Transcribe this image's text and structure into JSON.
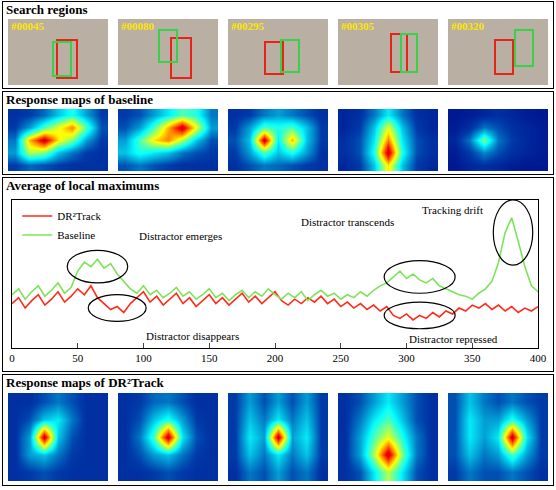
{
  "search_regions": {
    "title": "Search regions",
    "frames": [
      "#00045",
      "#00080",
      "#00295",
      "#00305",
      "#00320"
    ]
  },
  "baseline_maps": {
    "title": "Response maps of baseline",
    "zlim": [
      0,
      1
    ],
    "maps": [
      [
        [
          0.1,
          0.12,
          0.18,
          0.3,
          0.4,
          0.25,
          0.12
        ],
        [
          0.12,
          0.25,
          0.45,
          0.6,
          0.75,
          0.45,
          0.15
        ],
        [
          0.2,
          0.7,
          0.95,
          0.65,
          0.5,
          0.25,
          0.12
        ],
        [
          0.25,
          0.55,
          0.5,
          0.3,
          0.2,
          0.12,
          0.1
        ],
        [
          0.12,
          0.18,
          0.15,
          0.12,
          0.1,
          0.1,
          0.1
        ]
      ],
      [
        [
          0.12,
          0.15,
          0.25,
          0.35,
          0.45,
          0.4,
          0.2
        ],
        [
          0.15,
          0.25,
          0.45,
          0.7,
          0.95,
          0.6,
          0.25
        ],
        [
          0.25,
          0.45,
          0.65,
          0.75,
          0.55,
          0.3,
          0.15
        ],
        [
          0.3,
          0.4,
          0.35,
          0.3,
          0.2,
          0.15,
          0.12
        ],
        [
          0.15,
          0.2,
          0.15,
          0.12,
          0.1,
          0.1,
          0.1
        ]
      ],
      [
        [
          0.1,
          0.12,
          0.2,
          0.25,
          0.2,
          0.15,
          0.1
        ],
        [
          0.12,
          0.25,
          0.45,
          0.4,
          0.45,
          0.3,
          0.12
        ],
        [
          0.15,
          0.3,
          0.95,
          0.35,
          0.7,
          0.3,
          0.12
        ],
        [
          0.12,
          0.25,
          0.45,
          0.3,
          0.4,
          0.25,
          0.1
        ],
        [
          0.1,
          0.15,
          0.2,
          0.18,
          0.15,
          0.12,
          0.1
        ]
      ],
      [
        [
          0.08,
          0.1,
          0.2,
          0.35,
          0.2,
          0.1,
          0.08
        ],
        [
          0.08,
          0.12,
          0.3,
          0.6,
          0.3,
          0.12,
          0.08
        ],
        [
          0.1,
          0.15,
          0.35,
          0.75,
          0.35,
          0.15,
          0.1
        ],
        [
          0.1,
          0.15,
          0.4,
          0.95,
          0.4,
          0.15,
          0.1
        ],
        [
          0.08,
          0.12,
          0.3,
          0.65,
          0.3,
          0.12,
          0.08
        ]
      ],
      [
        [
          0.05,
          0.06,
          0.08,
          0.1,
          0.08,
          0.06,
          0.05
        ],
        [
          0.06,
          0.1,
          0.2,
          0.15,
          0.1,
          0.08,
          0.06
        ],
        [
          0.08,
          0.2,
          0.5,
          0.2,
          0.12,
          0.08,
          0.06
        ],
        [
          0.06,
          0.12,
          0.22,
          0.15,
          0.1,
          0.08,
          0.06
        ],
        [
          0.05,
          0.08,
          0.1,
          0.08,
          0.06,
          0.05,
          0.05
        ]
      ]
    ]
  },
  "chart_data": {
    "type": "line",
    "title": "Average of local maximums",
    "x": [
      0,
      5,
      10,
      15,
      20,
      25,
      30,
      35,
      40,
      45,
      50,
      55,
      60,
      65,
      70,
      75,
      80,
      85,
      90,
      95,
      100,
      105,
      110,
      115,
      120,
      125,
      130,
      135,
      140,
      145,
      150,
      155,
      160,
      165,
      170,
      175,
      180,
      185,
      190,
      195,
      200,
      205,
      210,
      215,
      220,
      225,
      230,
      235,
      240,
      245,
      250,
      255,
      260,
      265,
      270,
      275,
      280,
      285,
      290,
      295,
      300,
      305,
      310,
      315,
      320,
      325,
      330,
      335,
      340,
      345,
      350,
      355,
      360,
      365,
      370,
      375,
      380,
      385,
      390,
      395,
      400
    ],
    "series": [
      {
        "name": "DR²Track",
        "color": "#ff2a1a",
        "values": [
          0.3,
          0.34,
          0.27,
          0.32,
          0.36,
          0.29,
          0.33,
          0.38,
          0.31,
          0.35,
          0.4,
          0.36,
          0.42,
          0.34,
          0.3,
          0.26,
          0.28,
          0.24,
          0.3,
          0.34,
          0.38,
          0.31,
          0.35,
          0.29,
          0.33,
          0.37,
          0.3,
          0.34,
          0.28,
          0.32,
          0.36,
          0.3,
          0.34,
          0.29,
          0.33,
          0.37,
          0.31,
          0.35,
          0.3,
          0.34,
          0.38,
          0.32,
          0.29,
          0.33,
          0.3,
          0.34,
          0.31,
          0.35,
          0.3,
          0.33,
          0.28,
          0.31,
          0.27,
          0.3,
          0.26,
          0.29,
          0.25,
          0.28,
          0.22,
          0.2,
          0.23,
          0.19,
          0.22,
          0.2,
          0.24,
          0.21,
          0.25,
          0.23,
          0.27,
          0.25,
          0.29,
          0.27,
          0.3,
          0.26,
          0.29,
          0.25,
          0.28,
          0.24,
          0.27,
          0.25,
          0.28
        ]
      },
      {
        "name": "Baseline",
        "color": "#7ee35a",
        "values": [
          0.36,
          0.4,
          0.33,
          0.38,
          0.42,
          0.35,
          0.39,
          0.44,
          0.37,
          0.41,
          0.52,
          0.58,
          0.55,
          0.6,
          0.54,
          0.57,
          0.5,
          0.45,
          0.4,
          0.37,
          0.42,
          0.36,
          0.39,
          0.34,
          0.37,
          0.41,
          0.35,
          0.38,
          0.33,
          0.36,
          0.4,
          0.34,
          0.37,
          0.32,
          0.36,
          0.39,
          0.34,
          0.38,
          0.35,
          0.4,
          0.36,
          0.33,
          0.37,
          0.34,
          0.38,
          0.32,
          0.36,
          0.39,
          0.35,
          0.37,
          0.33,
          0.36,
          0.34,
          0.38,
          0.35,
          0.39,
          0.42,
          0.44,
          0.48,
          0.52,
          0.47,
          0.5,
          0.46,
          0.44,
          0.47,
          0.42,
          0.4,
          0.38,
          0.36,
          0.35,
          0.33,
          0.37,
          0.4,
          0.45,
          0.58,
          0.78,
          0.88,
          0.72,
          0.55,
          0.42,
          0.38
        ]
      }
    ],
    "xlim": [
      0,
      400
    ],
    "xticks": [
      0,
      50,
      100,
      150,
      200,
      250,
      300,
      350,
      400
    ],
    "ylim": [
      0,
      1
    ],
    "tick_labels": "x",
    "grid": false,
    "legend": "upper left",
    "annotations": [
      "Distractor emerges",
      "Distractor disappears",
      "Distractor transcends",
      "Distractor repressed",
      "Tracking drift"
    ]
  },
  "dr2track_maps": {
    "title": "Response maps of DR²Track",
    "zlim": [
      0,
      1
    ],
    "maps": [
      [
        [
          0.1,
          0.1,
          0.15,
          0.2,
          0.15,
          0.1,
          0.1
        ],
        [
          0.1,
          0.15,
          0.3,
          0.35,
          0.2,
          0.1,
          0.1
        ],
        [
          0.1,
          0.25,
          0.95,
          0.3,
          0.15,
          0.1,
          0.1
        ],
        [
          0.1,
          0.25,
          0.3,
          0.2,
          0.12,
          0.1,
          0.1
        ],
        [
          0.1,
          0.12,
          0.15,
          0.12,
          0.1,
          0.1,
          0.1
        ]
      ],
      [
        [
          0.1,
          0.12,
          0.18,
          0.2,
          0.15,
          0.1,
          0.1
        ],
        [
          0.1,
          0.15,
          0.3,
          0.4,
          0.25,
          0.12,
          0.1
        ],
        [
          0.1,
          0.2,
          0.45,
          0.95,
          0.35,
          0.15,
          0.1
        ],
        [
          0.1,
          0.15,
          0.25,
          0.3,
          0.2,
          0.12,
          0.1
        ],
        [
          0.1,
          0.1,
          0.12,
          0.15,
          0.12,
          0.1,
          0.1
        ]
      ],
      [
        [
          0.12,
          0.25,
          0.15,
          0.25,
          0.15,
          0.25,
          0.12
        ],
        [
          0.12,
          0.3,
          0.2,
          0.35,
          0.2,
          0.3,
          0.12
        ],
        [
          0.12,
          0.35,
          0.25,
          0.95,
          0.25,
          0.35,
          0.12
        ],
        [
          0.12,
          0.3,
          0.2,
          0.35,
          0.2,
          0.3,
          0.12
        ],
        [
          0.1,
          0.2,
          0.15,
          0.25,
          0.15,
          0.2,
          0.1
        ]
      ],
      [
        [
          0.1,
          0.15,
          0.25,
          0.35,
          0.25,
          0.15,
          0.1
        ],
        [
          0.1,
          0.2,
          0.35,
          0.45,
          0.3,
          0.15,
          0.1
        ],
        [
          0.1,
          0.25,
          0.45,
          0.6,
          0.4,
          0.2,
          0.1
        ],
        [
          0.1,
          0.25,
          0.55,
          0.95,
          0.5,
          0.2,
          0.1
        ],
        [
          0.1,
          0.15,
          0.35,
          0.55,
          0.35,
          0.15,
          0.1
        ]
      ],
      [
        [
          0.15,
          0.3,
          0.2,
          0.15,
          0.2,
          0.15,
          0.12
        ],
        [
          0.15,
          0.35,
          0.25,
          0.25,
          0.4,
          0.25,
          0.12
        ],
        [
          0.15,
          0.35,
          0.25,
          0.35,
          0.95,
          0.35,
          0.12
        ],
        [
          0.15,
          0.3,
          0.2,
          0.25,
          0.45,
          0.25,
          0.12
        ],
        [
          0.12,
          0.2,
          0.15,
          0.15,
          0.2,
          0.15,
          0.1
        ]
      ]
    ]
  }
}
